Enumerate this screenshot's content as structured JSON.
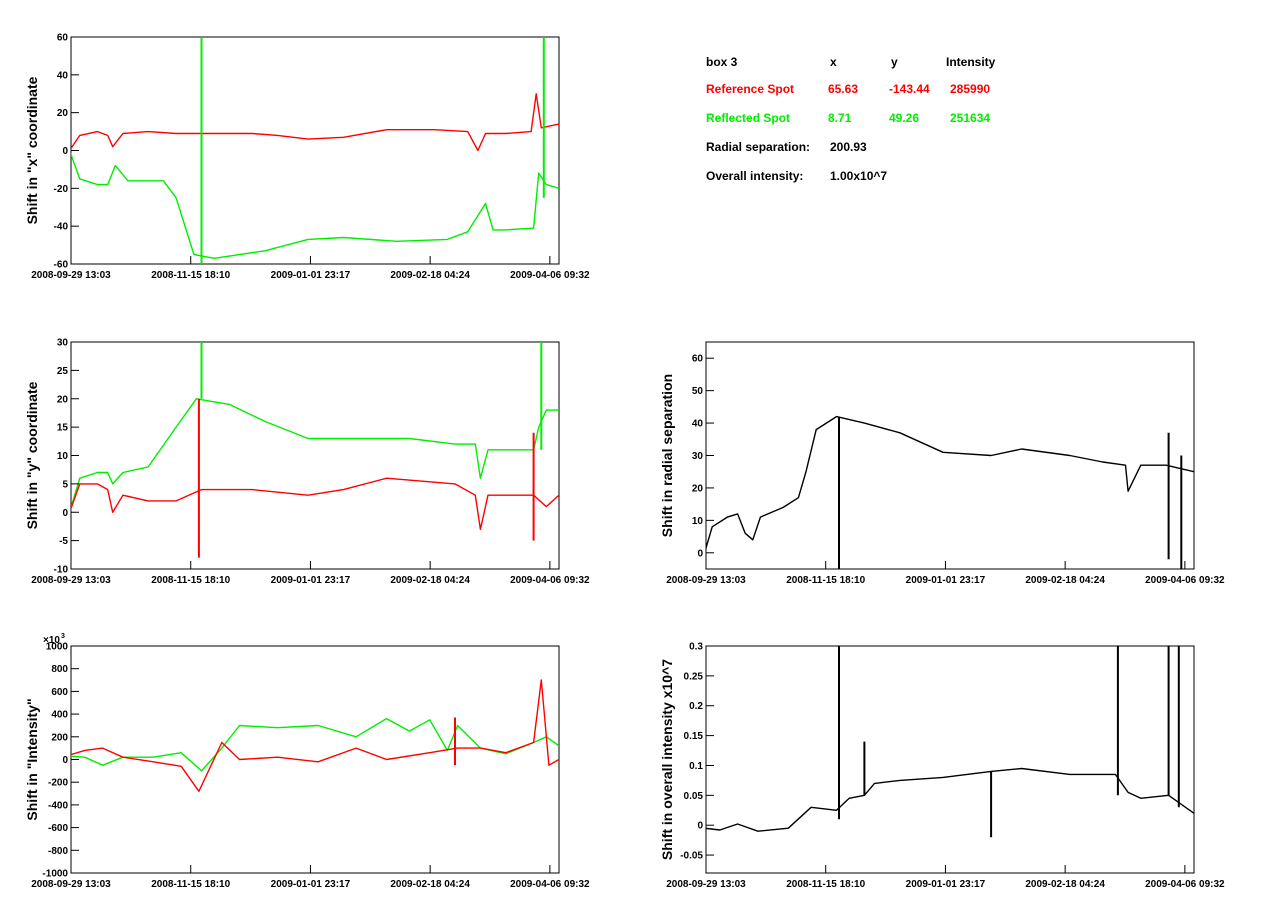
{
  "colors": {
    "reference": "#ff0000",
    "reflected": "#00ee00",
    "overall": "#000000",
    "frame": "#000000"
  },
  "info": {
    "box": "box 3",
    "col_x": "x",
    "col_y": "y",
    "col_intensity": "Intensity",
    "reference": {
      "label": "Reference Spot",
      "x": "65.63",
      "y": "-143.44",
      "intensity": "285990"
    },
    "reflected": {
      "label": "Reflected Spot",
      "x": "8.71",
      "y": "49.26",
      "intensity": "251634"
    },
    "radial_label": "Radial separation:",
    "radial_value": "200.93",
    "overall_label": "Overall intensity:",
    "overall_value": "1.00x10^7"
  },
  "chart_data": [
    {
      "id": "shift-x",
      "type": "line",
      "ylabel": "Shift in \"x\" coordinate",
      "x_tick_labels": [
        "2008-09-29 13:03",
        "2008-11-15 18:10",
        "2009-01-01 23:17",
        "2009-02-18 04:24",
        "2009-04-06 09:32"
      ],
      "x_range": [
        "2008-09-29 13:03",
        "2009-04-10 00:00"
      ],
      "ylim": [
        -60,
        60
      ],
      "y_ticks": [
        -60,
        -40,
        -20,
        0,
        20,
        40,
        60
      ],
      "series": [
        {
          "color_key": "reference",
          "x": [
            "2008-09-29",
            "2008-10-03",
            "2008-10-10",
            "2008-10-14",
            "2008-10-16",
            "2008-10-20",
            "2008-10-30",
            "2008-11-10",
            "2008-11-20",
            "2008-12-10",
            "2008-12-20",
            "2009-01-01",
            "2009-01-15",
            "2009-02-01",
            "2009-02-20",
            "2009-03-05",
            "2009-03-09",
            "2009-03-12",
            "2009-03-20",
            "2009-03-30",
            "2009-04-01",
            "2009-04-03",
            "2009-04-10"
          ],
          "y": [
            0,
            8,
            10,
            8,
            2,
            9,
            10,
            9,
            9,
            9,
            8,
            6,
            7,
            11,
            11,
            10,
            0,
            9,
            9,
            10,
            30,
            12,
            14
          ]
        },
        {
          "color_key": "reflected",
          "x": [
            "2008-09-29",
            "2008-10-03",
            "2008-10-10",
            "2008-10-14",
            "2008-10-17",
            "2008-10-22",
            "2008-11-05",
            "2008-11-10",
            "2008-11-17",
            "2008-11-25",
            "2008-12-15",
            "2009-01-01",
            "2009-01-15",
            "2009-02-05",
            "2009-02-25",
            "2009-03-05",
            "2009-03-12",
            "2009-03-15",
            "2009-03-20",
            "2009-03-31",
            "2009-04-02",
            "2009-04-05",
            "2009-04-10"
          ],
          "y": [
            0,
            -15,
            -18,
            -18,
            -8,
            -16,
            -16,
            -25,
            -55,
            -57,
            -53,
            -47,
            -46,
            -48,
            -47,
            -43,
            -28,
            -42,
            -42,
            -41,
            -12,
            -18,
            -20
          ]
        },
        {
          "color_key": "reflected",
          "x": [
            "2008-11-20",
            "2008-11-20"
          ],
          "y": [
            -60,
            60
          ]
        },
        {
          "color_key": "reflected",
          "x": [
            "2008-11-20",
            "2008-11-20"
          ],
          "y": [
            -60,
            60
          ]
        },
        {
          "color_key": "reflected",
          "x": [
            "2009-04-04",
            "2009-04-04"
          ],
          "y": [
            -25,
            60
          ]
        }
      ]
    },
    {
      "id": "shift-y",
      "type": "line",
      "ylabel": "Shift in \"y\" coordinate",
      "x_tick_labels": [
        "2008-09-29 13:03",
        "2008-11-15 18:10",
        "2009-01-01 23:17",
        "2009-02-18 04:24",
        "2009-04-06 09:32"
      ],
      "x_range": [
        "2008-09-29 13:03",
        "2009-04-10 00:00"
      ],
      "ylim": [
        -10,
        30
      ],
      "y_ticks": [
        -10,
        -5,
        0,
        5,
        10,
        15,
        20,
        25,
        30
      ],
      "series": [
        {
          "color_key": "reflected",
          "x": [
            "2008-09-29",
            "2008-10-03",
            "2008-10-10",
            "2008-10-14",
            "2008-10-16",
            "2008-10-20",
            "2008-10-30",
            "2008-11-10",
            "2008-11-18",
            "2008-12-01",
            "2008-12-15",
            "2009-01-01",
            "2009-01-20",
            "2009-02-10",
            "2009-02-28",
            "2009-03-08",
            "2009-03-10",
            "2009-03-13",
            "2009-03-31",
            "2009-04-02",
            "2009-04-05",
            "2009-04-10"
          ],
          "y": [
            0,
            6,
            7,
            7,
            5,
            7,
            8,
            15,
            20,
            19,
            16,
            13,
            13,
            13,
            12,
            12,
            6,
            11,
            11,
            15,
            18,
            18
          ]
        },
        {
          "color_key": "reference",
          "x": [
            "2008-09-29",
            "2008-10-03",
            "2008-10-10",
            "2008-10-14",
            "2008-10-16",
            "2008-10-20",
            "2008-10-30",
            "2008-11-10",
            "2008-11-20",
            "2008-12-10",
            "2009-01-01",
            "2009-01-15",
            "2009-02-01",
            "2009-02-28",
            "2009-03-08",
            "2009-03-10",
            "2009-03-13",
            "2009-03-31",
            "2009-04-05",
            "2009-04-10"
          ],
          "y": [
            0,
            5,
            5,
            4,
            0,
            3,
            2,
            2,
            4,
            4,
            3,
            4,
            6,
            5,
            3,
            -3,
            3,
            3,
            1,
            3
          ]
        },
        {
          "color_key": "reflected",
          "x": [
            "2008-11-20",
            "2008-11-20"
          ],
          "y": [
            20,
            30
          ]
        },
        {
          "color_key": "reference",
          "x": [
            "2008-11-19",
            "2008-11-19"
          ],
          "y": [
            -8,
            20
          ]
        },
        {
          "color_key": "reference",
          "x": [
            "2009-03-31",
            "2009-03-31"
          ],
          "y": [
            -5,
            14
          ]
        },
        {
          "color_key": "reflected",
          "x": [
            "2009-04-03",
            "2009-04-03"
          ],
          "y": [
            11,
            30
          ]
        }
      ]
    },
    {
      "id": "shift-radial",
      "type": "line",
      "ylabel": "Shift in radial separation",
      "x_tick_labels": [
        "2008-09-29 13:03",
        "2008-11-15 18:10",
        "2009-01-01 23:17",
        "2009-02-18 04:24",
        "2009-04-06 09:32"
      ],
      "x_range": [
        "2008-09-29 13:03",
        "2009-04-10 00:00"
      ],
      "ylim": [
        -5,
        65
      ],
      "y_ticks": [
        0,
        10,
        20,
        30,
        40,
        50,
        60
      ],
      "series": [
        {
          "color_key": "overall",
          "x": [
            "2008-09-29",
            "2008-10-02",
            "2008-10-08",
            "2008-10-12",
            "2008-10-15",
            "2008-10-18",
            "2008-10-21",
            "2008-10-30",
            "2008-11-05",
            "2008-11-08",
            "2008-11-12",
            "2008-11-20",
            "2008-12-01",
            "2008-12-15",
            "2009-01-01",
            "2009-01-20",
            "2009-02-01",
            "2009-02-20",
            "2009-03-05",
            "2009-03-14",
            "2009-03-15",
            "2009-03-20",
            "2009-03-30",
            "2009-04-10"
          ],
          "y": [
            0,
            8,
            11,
            12,
            6,
            4,
            11,
            14,
            17,
            25,
            38,
            42,
            40,
            37,
            31,
            30,
            32,
            30,
            28,
            27,
            19,
            27,
            27,
            25
          ]
        },
        {
          "color_key": "overall",
          "x": [
            "2008-11-21",
            "2008-11-21"
          ],
          "y": [
            -5,
            42
          ]
        },
        {
          "color_key": "overall",
          "x": [
            "2009-03-31",
            "2009-03-31"
          ],
          "y": [
            -2,
            37
          ]
        },
        {
          "color_key": "overall",
          "x": [
            "2009-04-05",
            "2009-04-05"
          ],
          "y": [
            -5,
            30
          ]
        }
      ]
    },
    {
      "id": "shift-intensity",
      "type": "line",
      "ylabel": "Shift in \"Intensity\"",
      "y_multiplier_label": "×10",
      "y_multiplier_exp": "3",
      "x_tick_labels": [
        "2008-09-29 13:03",
        "2008-11-15 18:10",
        "2009-01-01 23:17",
        "2009-02-18 04:24",
        "2009-04-06 09:32"
      ],
      "x_range": [
        "2008-09-29 13:03",
        "2009-04-10 00:00"
      ],
      "ylim": [
        -1000,
        1000
      ],
      "y_ticks": [
        -1000,
        -800,
        -600,
        -400,
        -200,
        0,
        200,
        400,
        600,
        800,
        1000
      ],
      "series": [
        {
          "color_key": "reflected",
          "x": [
            "2008-09-29",
            "2008-10-05",
            "2008-10-12",
            "2008-10-20",
            "2008-11-01",
            "2008-11-12",
            "2008-11-20",
            "2008-11-28",
            "2008-12-05",
            "2008-12-20",
            "2009-01-05",
            "2009-01-20",
            "2009-02-01",
            "2009-02-10",
            "2009-02-18",
            "2009-02-25",
            "2009-03-01",
            "2009-03-10",
            "2009-03-20",
            "2009-03-31",
            "2009-04-05",
            "2009-04-10"
          ],
          "y": [
            30,
            20,
            -50,
            20,
            20,
            60,
            -100,
            100,
            300,
            280,
            300,
            200,
            360,
            250,
            350,
            80,
            300,
            100,
            50,
            150,
            200,
            120
          ]
        },
        {
          "color_key": "reference",
          "x": [
            "2008-09-29",
            "2008-10-05",
            "2008-10-12",
            "2008-10-20",
            "2008-11-01",
            "2008-11-12",
            "2008-11-19",
            "2008-11-28",
            "2008-12-05",
            "2008-12-20",
            "2009-01-05",
            "2009-01-20",
            "2009-02-01",
            "2009-02-18",
            "2009-03-01",
            "2009-03-10",
            "2009-03-20",
            "2009-03-31",
            "2009-04-03",
            "2009-04-06",
            "2009-04-10"
          ],
          "y": [
            40,
            80,
            100,
            20,
            -20,
            -60,
            -280,
            150,
            0,
            20,
            -20,
            100,
            0,
            60,
            100,
            100,
            60,
            150,
            700,
            -50,
            0
          ]
        },
        {
          "color_key": "reference",
          "x": [
            "2009-02-28",
            "2009-02-28"
          ],
          "y": [
            -50,
            370
          ]
        }
      ]
    },
    {
      "id": "shift-overall",
      "type": "line",
      "ylabel": "Shift in overall intensity x10^7",
      "x_tick_labels": [
        "2008-09-29 13:03",
        "2008-11-15 18:10",
        "2009-01-01 23:17",
        "2009-02-18 04:24",
        "2009-04-06 09:32"
      ],
      "x_range": [
        "2008-09-29 13:03",
        "2009-04-10 00:00"
      ],
      "ylim": [
        -0.08,
        0.3
      ],
      "y_ticks": [
        -0.05,
        0,
        0.05,
        0.1,
        0.15,
        0.2,
        0.25,
        0.3
      ],
      "series": [
        {
          "color_key": "overall",
          "x": [
            "2008-09-29",
            "2008-10-05",
            "2008-10-12",
            "2008-10-20",
            "2008-11-01",
            "2008-11-10",
            "2008-11-20",
            "2008-11-25",
            "2008-12-01",
            "2008-12-05",
            "2008-12-15",
            "2009-01-01",
            "2009-01-20",
            "2009-02-01",
            "2009-02-20",
            "2009-03-10",
            "2009-03-15",
            "2009-03-20",
            "2009-03-31",
            "2009-04-05",
            "2009-04-10"
          ],
          "y": [
            -0.005,
            -0.008,
            0.002,
            -0.01,
            -0.005,
            0.03,
            0.025,
            0.045,
            0.05,
            0.07,
            0.075,
            0.08,
            0.09,
            0.095,
            0.085,
            0.085,
            0.055,
            0.045,
            0.05,
            0.035,
            0.02
          ]
        },
        {
          "color_key": "overall",
          "x": [
            "2008-11-21",
            "2008-11-21"
          ],
          "y": [
            0.01,
            0.3
          ]
        },
        {
          "color_key": "overall",
          "x": [
            "2008-12-01",
            "2008-12-01"
          ],
          "y": [
            0.05,
            0.14
          ]
        },
        {
          "color_key": "overall",
          "x": [
            "2009-01-20",
            "2009-01-20"
          ],
          "y": [
            -0.02,
            0.09
          ]
        },
        {
          "color_key": "overall",
          "x": [
            "2009-03-11",
            "2009-03-11"
          ],
          "y": [
            0.05,
            0.3
          ]
        },
        {
          "color_key": "overall",
          "x": [
            "2009-03-31",
            "2009-03-31"
          ],
          "y": [
            0.05,
            0.3
          ]
        },
        {
          "color_key": "overall",
          "x": [
            "2009-04-04",
            "2009-04-04"
          ],
          "y": [
            0.03,
            0.3
          ]
        }
      ]
    }
  ]
}
